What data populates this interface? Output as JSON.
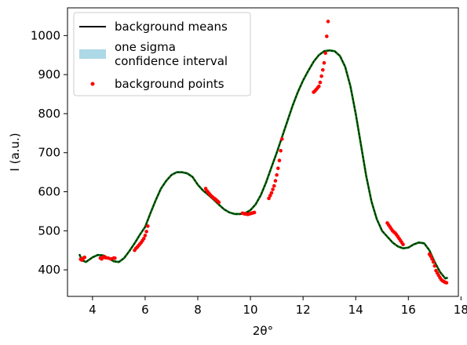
{
  "chart_data": {
    "type": "line",
    "xlabel": "2θ°",
    "ylabel": "I (a.u.)",
    "xlim": [
      3.05,
      17.9
    ],
    "ylim": [
      332,
      1071
    ],
    "xticks": [
      4,
      6,
      8,
      10,
      12,
      14,
      16,
      18
    ],
    "yticks": [
      400,
      500,
      600,
      700,
      800,
      900,
      1000
    ],
    "grid": false,
    "legend_position": "top-left",
    "legend": [
      {
        "label": "background means",
        "kind": "line",
        "color": "#000000"
      },
      {
        "label": "one sigma\n confidence interval",
        "kind": "band",
        "color": "#add8e6"
      },
      {
        "label": "background points",
        "kind": "scatter",
        "color": "#ff0000"
      }
    ],
    "series": [
      {
        "name": "background means",
        "color": "#000000",
        "x": [
          3.5,
          3.6,
          3.75,
          4.0,
          4.2,
          4.4,
          4.6,
          4.8,
          5.0,
          5.2,
          5.4,
          5.6,
          5.8,
          6.0,
          6.2,
          6.4,
          6.6,
          6.8,
          7.0,
          7.2,
          7.4,
          7.6,
          7.8,
          8.0,
          8.2,
          8.4,
          8.6,
          8.8,
          9.0,
          9.2,
          9.4,
          9.6,
          9.8,
          10.0,
          10.2,
          10.4,
          10.6,
          10.8,
          11.0,
          11.2,
          11.4,
          11.6,
          11.8,
          12.0,
          12.2,
          12.4,
          12.6,
          12.8,
          13.0,
          13.2,
          13.4,
          13.6,
          13.8,
          14.0,
          14.2,
          14.4,
          14.6,
          14.8,
          15.0,
          15.2,
          15.4,
          15.6,
          15.8,
          16.0,
          16.2,
          16.4,
          16.6,
          16.8,
          17.0,
          17.2,
          17.4,
          17.5
        ],
        "y": [
          440,
          425,
          420,
          432,
          438,
          437,
          430,
          422,
          420,
          430,
          448,
          468,
          490,
          510,
          545,
          578,
          608,
          628,
          643,
          650,
          650,
          647,
          638,
          618,
          603,
          592,
          580,
          567,
          555,
          547,
          543,
          543,
          545,
          553,
          568,
          592,
          625,
          663,
          700,
          740,
          780,
          820,
          855,
          885,
          910,
          933,
          950,
          960,
          962,
          960,
          948,
          920,
          870,
          800,
          720,
          640,
          575,
          530,
          500,
          485,
          470,
          460,
          455,
          457,
          465,
          470,
          468,
          450,
          420,
          395,
          378,
          380
        ]
      },
      {
        "name": "one sigma confidence interval",
        "color": "#add8e6",
        "x": [
          3.5,
          3.6,
          3.75,
          4.0,
          4.2,
          4.4,
          4.6,
          4.8,
          5.0,
          5.2,
          5.4,
          5.6,
          5.8,
          6.0,
          6.2,
          6.4,
          6.6,
          6.8,
          7.0,
          7.2,
          7.4,
          7.6,
          7.8,
          8.0,
          8.2,
          8.4,
          8.6,
          8.8,
          9.0,
          9.2,
          9.4,
          9.6,
          9.8,
          10.0,
          10.2,
          10.4,
          10.6,
          10.8,
          11.0,
          11.2,
          11.4,
          11.6,
          11.8,
          12.0,
          12.2,
          12.4,
          12.6,
          12.8,
          13.0,
          13.2,
          13.4,
          13.6,
          13.8,
          14.0,
          14.2,
          14.4,
          14.6,
          14.8,
          15.0,
          15.2,
          15.4,
          15.6,
          15.8,
          16.0,
          16.2,
          16.4,
          16.6,
          16.8,
          17.0,
          17.2,
          17.4,
          17.5
        ],
        "lower": [
          437,
          422,
          417,
          429,
          435,
          434,
          427,
          419,
          417,
          427,
          445,
          465,
          487,
          507,
          542,
          575,
          605,
          625,
          640,
          647,
          647,
          644,
          635,
          615,
          600,
          589,
          577,
          564,
          552,
          544,
          540,
          540,
          542,
          550,
          565,
          589,
          622,
          660,
          697,
          737,
          777,
          817,
          852,
          882,
          907,
          930,
          947,
          957,
          959,
          957,
          945,
          917,
          867,
          797,
          717,
          637,
          572,
          527,
          497,
          482,
          467,
          457,
          452,
          454,
          462,
          467,
          465,
          447,
          417,
          392,
          375,
          377
        ],
        "upper": [
          443,
          428,
          423,
          435,
          441,
          440,
          433,
          425,
          423,
          433,
          451,
          471,
          493,
          513,
          548,
          581,
          611,
          631,
          646,
          653,
          653,
          650,
          641,
          621,
          606,
          595,
          583,
          570,
          558,
          550,
          546,
          546,
          548,
          556,
          571,
          595,
          628,
          666,
          703,
          743,
          783,
          823,
          858,
          888,
          913,
          936,
          953,
          963,
          965,
          963,
          951,
          923,
          873,
          803,
          723,
          643,
          578,
          533,
          503,
          488,
          473,
          463,
          458,
          460,
          468,
          473,
          471,
          453,
          423,
          398,
          381,
          383
        ]
      },
      {
        "name": "background points",
        "color": "#ff0000",
        "x": [
          3.55,
          3.6,
          3.65,
          3.7,
          4.3,
          4.35,
          4.4,
          4.45,
          4.5,
          4.6,
          4.7,
          4.8,
          4.85,
          5.6,
          5.65,
          5.7,
          5.75,
          5.8,
          5.85,
          5.9,
          5.95,
          6.0,
          6.05,
          6.1,
          8.3,
          8.35,
          8.4,
          8.45,
          8.5,
          8.55,
          8.6,
          8.65,
          8.7,
          8.75,
          8.8,
          9.7,
          9.75,
          9.8,
          9.85,
          9.9,
          9.95,
          10.0,
          10.05,
          10.1,
          10.15,
          10.7,
          10.75,
          10.8,
          10.85,
          10.9,
          10.95,
          11.0,
          11.05,
          11.1,
          11.15,
          11.2,
          12.4,
          12.45,
          12.5,
          12.55,
          12.6,
          12.65,
          12.7,
          12.75,
          12.8,
          12.85,
          12.9,
          12.95,
          15.2,
          15.25,
          15.3,
          15.35,
          15.4,
          15.45,
          15.5,
          15.55,
          15.6,
          15.65,
          15.7,
          15.75,
          15.8,
          16.8,
          16.85,
          16.9,
          16.95,
          17.0,
          17.05,
          17.1,
          17.15,
          17.2,
          17.25,
          17.3,
          17.35,
          17.4,
          17.45
        ],
        "y": [
          427,
          425,
          430,
          432,
          430,
          428,
          432,
          434,
          431,
          430,
          428,
          430,
          430,
          450,
          455,
          458,
          462,
          466,
          470,
          475,
          480,
          488,
          498,
          512,
          608,
          602,
          598,
          594,
          590,
          587,
          584,
          582,
          579,
          576,
          573,
          545,
          544,
          543,
          543,
          542,
          543,
          544,
          545,
          546,
          547,
          583,
          590,
          597,
          606,
          615,
          628,
          643,
          660,
          680,
          705,
          735,
          855,
          858,
          862,
          866,
          870,
          880,
          896,
          912,
          930,
          955,
          998,
          1036,
          520,
          515,
          510,
          505,
          500,
          497,
          494,
          490,
          485,
          480,
          475,
          470,
          465,
          440,
          435,
          428,
          420,
          410,
          398,
          392,
          386,
          380,
          375,
          372,
          370,
          368,
          367
        ]
      }
    ]
  }
}
